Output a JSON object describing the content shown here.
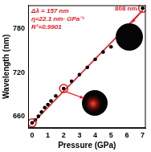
{
  "chart_data": {
    "type": "scatter",
    "x_label": "Pressure (GPa)",
    "y_label": "Wavelength (nm)",
    "xlim": [
      -0.25,
      7.2
    ],
    "ylim": [
      644,
      812
    ],
    "xticks": [
      0,
      1,
      2,
      3,
      4,
      5,
      6,
      7
    ],
    "yticks": [
      660,
      720,
      780
    ],
    "grid": false,
    "annotations": [
      "Δλ = 157 nm",
      "η=22.1 nm· GPa⁻¹",
      "R²=0.9901",
      "808 nm"
    ],
    "series": [
      {
        "type": "line",
        "color": "#e8141e",
        "line_style": "solid",
        "marker": "none",
        "x": [
          0,
          7
        ],
        "values": [
          650,
          805
        ]
      },
      {
        "type": "scatter",
        "color": "#000000",
        "marker": "circle",
        "x": [
          0,
          0.2,
          0.4,
          0.6,
          0.8,
          1.0,
          1.2,
          1.5,
          2.0,
          2.5,
          3.0,
          3.5,
          4.0,
          4.5,
          5.0,
          6.0,
          7.0
        ],
        "values": [
          651,
          655,
          660,
          666,
          672,
          676,
          681,
          688,
          698,
          708,
          717,
          727,
          738,
          748,
          755,
          783,
          808
        ]
      },
      {
        "type": "scatter",
        "color": "#e8141e",
        "marker": "ring",
        "x": [
          0,
          2.0,
          7.0
        ],
        "values": [
          651,
          698,
          808
        ]
      }
    ]
  }
}
